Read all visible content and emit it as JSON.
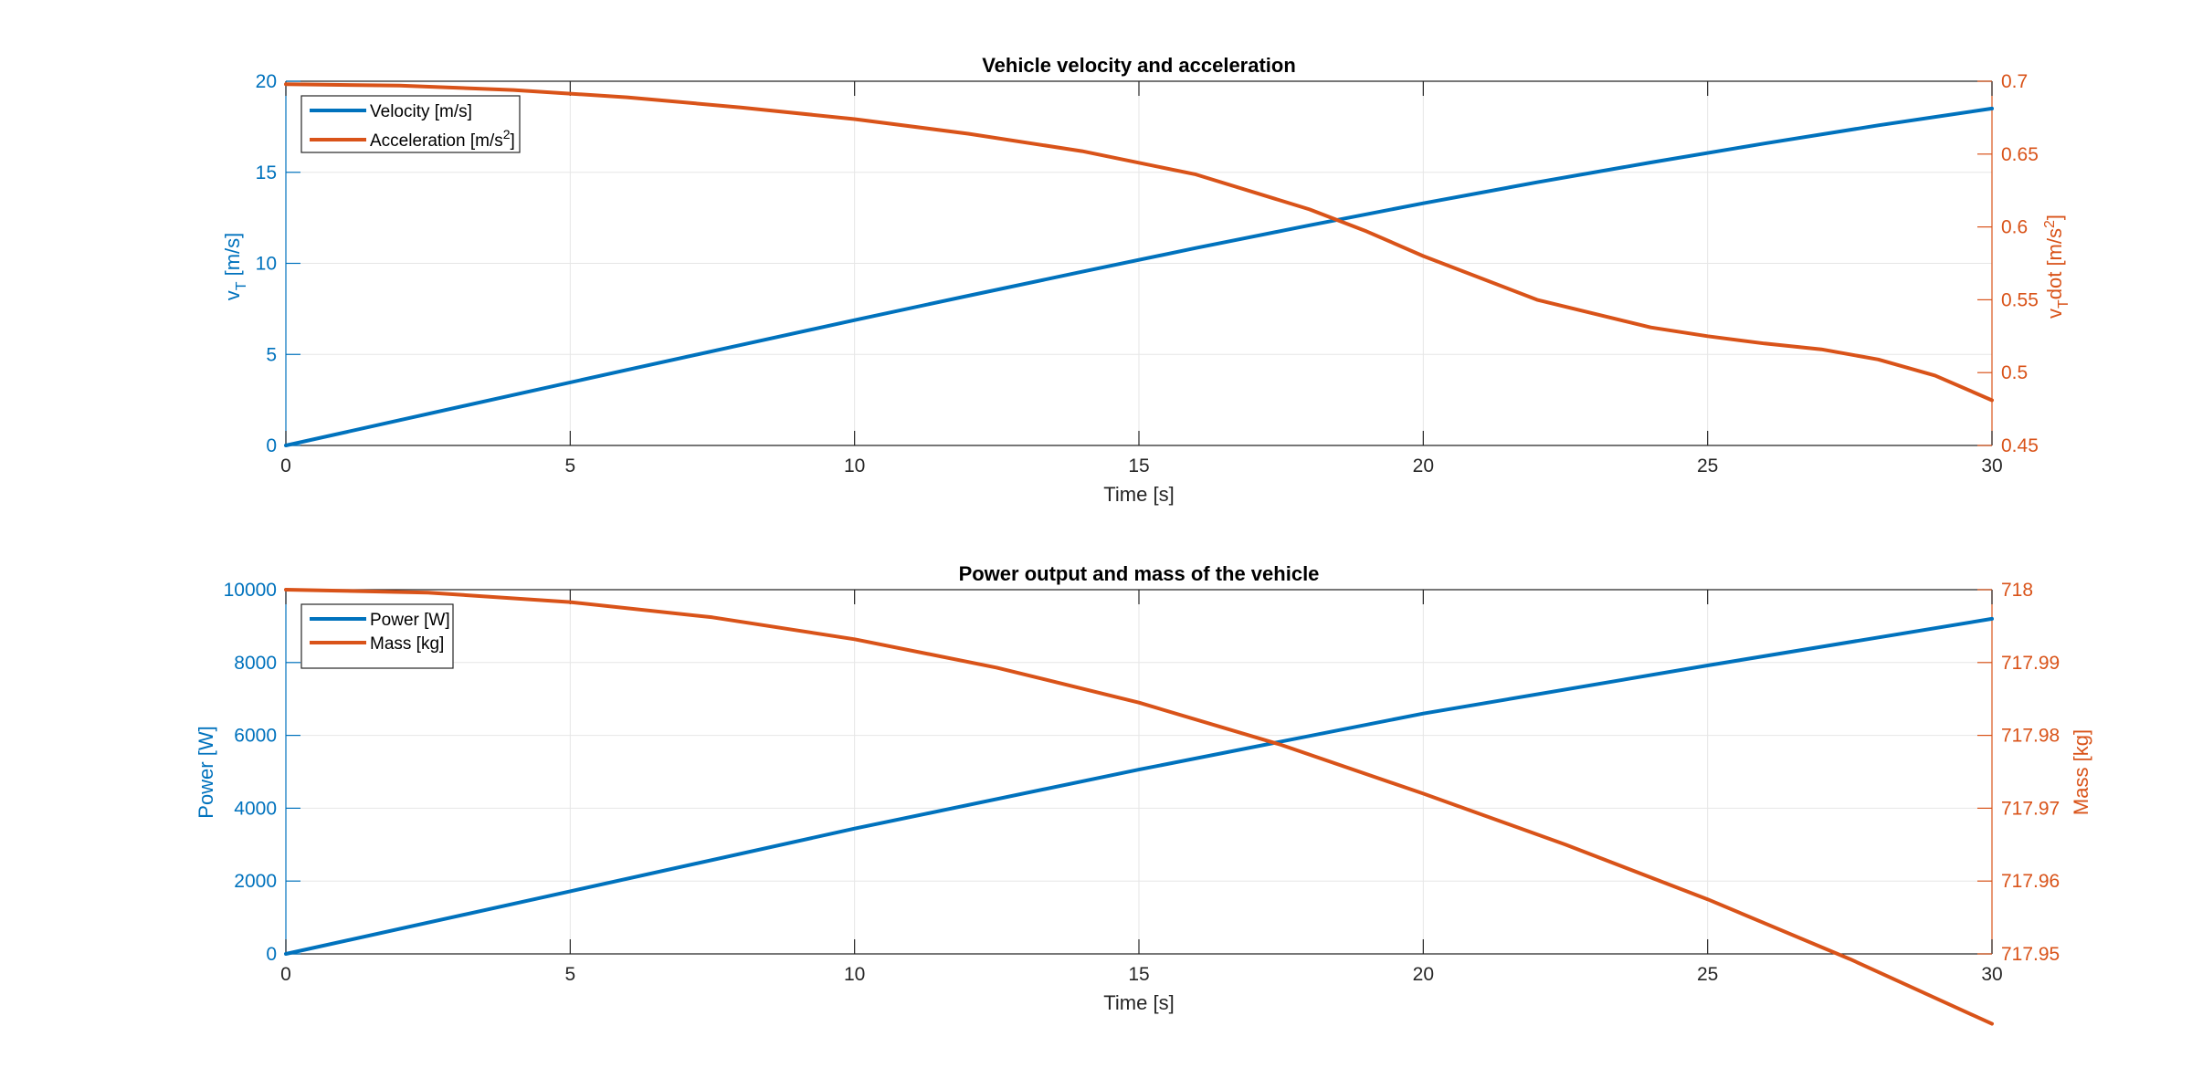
{
  "colors": {
    "blue": "#0072BD",
    "orange": "#D95319",
    "axis": "#262626",
    "grid": "#E6E6E6"
  },
  "chart_data": [
    {
      "type": "line",
      "title": "Vehicle velocity and acceleration",
      "xlabel": "Time [s]",
      "ylabel_left_main": "v",
      "ylabel_left_sub": "T",
      "ylabel_left_tail": " [m/s]",
      "ylabel_right_main": "v",
      "ylabel_right_sub": "T",
      "ylabel_right_mid": "dot [m/s",
      "ylabel_right_sup": "2",
      "ylabel_right_tail": "]",
      "xlim": [
        0,
        30
      ],
      "ylim_left": [
        0,
        20
      ],
      "ylim_right": [
        0.45,
        0.7
      ],
      "xticks": [
        "0",
        "5",
        "10",
        "15",
        "20",
        "25",
        "30"
      ],
      "yticks_left": [
        "0",
        "5",
        "10",
        "15",
        "20"
      ],
      "yticks_right": [
        "0.45",
        "0.5",
        "0.55",
        "0.6",
        "0.65",
        "0.7"
      ],
      "grid": true,
      "legend_position": "top-left",
      "legend": [
        {
          "label": "Velocity [m/s]",
          "sup": "",
          "tail": ""
        },
        {
          "label": "Acceleration [m/s",
          "sup": "2",
          "tail": "]"
        }
      ],
      "series": [
        {
          "name": "Velocity [m/s]",
          "axis": "left",
          "color": "#0072BD",
          "x": [
            0,
            2,
            4,
            6,
            8,
            10,
            12,
            14,
            16,
            18,
            20,
            22,
            24,
            26,
            28,
            30
          ],
          "y": [
            0,
            1.39,
            2.77,
            4.15,
            5.52,
            6.88,
            8.22,
            9.54,
            10.84,
            12.09,
            13.3,
            14.45,
            15.54,
            16.58,
            17.58,
            18.5
          ]
        },
        {
          "name": "Acceleration [m/s²]",
          "axis": "right",
          "color": "#D95319",
          "x": [
            0,
            2,
            4,
            6,
            8,
            10,
            12,
            14,
            16,
            18,
            19,
            20,
            22,
            24,
            25,
            26,
            27,
            28,
            29,
            30
          ],
          "y": [
            0.698,
            0.697,
            0.694,
            0.689,
            0.682,
            0.674,
            0.664,
            0.652,
            0.636,
            0.612,
            0.597,
            0.58,
            0.55,
            0.531,
            0.525,
            0.52,
            0.516,
            0.509,
            0.498,
            0.481
          ]
        }
      ]
    },
    {
      "type": "line",
      "title": "Power output and mass of the vehicle",
      "xlabel": "Time [s]",
      "ylabel_left": "Power [W]",
      "ylabel_right": "Mass [kg]",
      "xlim": [
        0,
        30
      ],
      "ylim_left": [
        0,
        10000
      ],
      "ylim_right": [
        717.95,
        718
      ],
      "xticks": [
        "0",
        "5",
        "10",
        "15",
        "20",
        "25",
        "30"
      ],
      "yticks_left": [
        "0",
        "2000",
        "4000",
        "6000",
        "8000",
        "10000"
      ],
      "yticks_right": [
        "717.95",
        "717.96",
        "717.97",
        "717.98",
        "717.99",
        "718"
      ],
      "grid": true,
      "legend_position": "top-left",
      "legend": [
        {
          "label": "Power [W]"
        },
        {
          "label": "Mass [kg]"
        }
      ],
      "series": [
        {
          "name": "Power [W]",
          "axis": "left",
          "color": "#0072BD",
          "x": [
            0,
            5,
            10,
            15,
            20,
            25,
            30
          ],
          "y": [
            0,
            1720,
            3440,
            5060,
            6600,
            7920,
            9200
          ]
        },
        {
          "name": "Mass [kg]",
          "axis": "right",
          "color": "#D95319",
          "x": [
            0,
            2.5,
            5,
            7.5,
            10,
            12.5,
            15,
            17.5,
            20,
            22.5,
            25,
            27.5,
            30
          ],
          "y": [
            718.0,
            717.9996,
            717.9983,
            717.9962,
            717.9932,
            717.9893,
            717.9845,
            717.9787,
            717.972,
            717.965,
            717.9575,
            717.9493,
            717.9404
          ]
        }
      ]
    }
  ]
}
